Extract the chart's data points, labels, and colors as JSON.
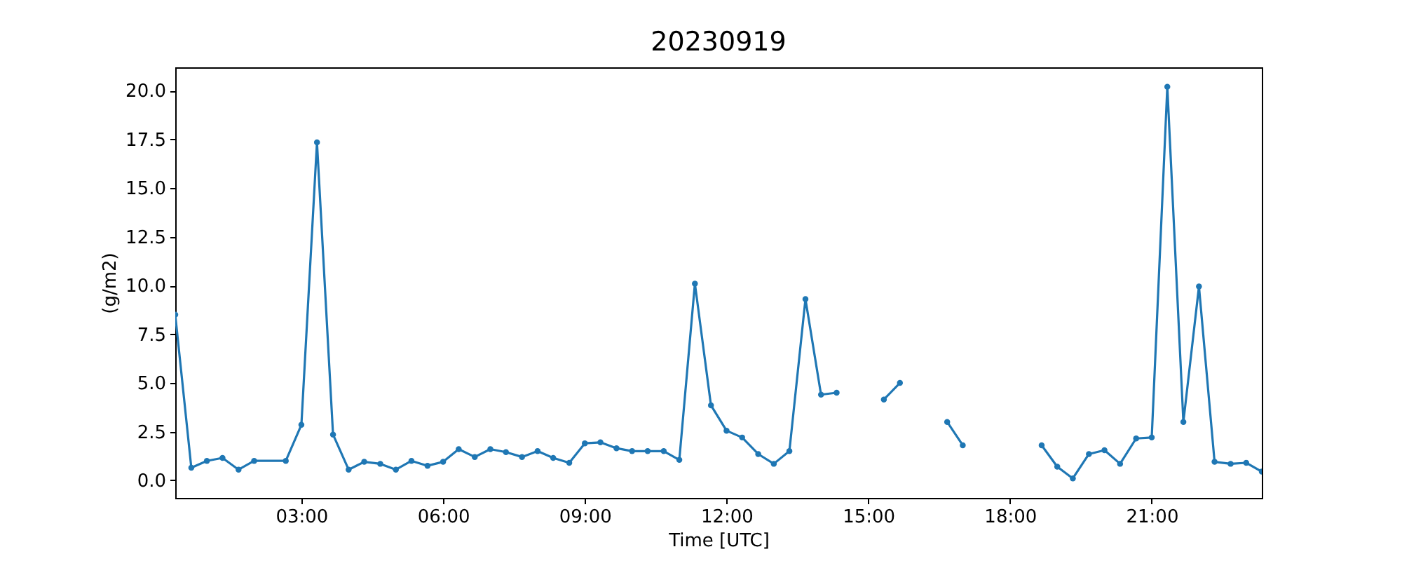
{
  "chart_data": {
    "type": "line",
    "title": "20230919",
    "xlabel": "Time [UTC]",
    "ylabel": "(g/m2)",
    "x": [
      0.33,
      0.67,
      1.0,
      1.33,
      1.67,
      2.0,
      2.67,
      3.0,
      3.33,
      3.67,
      4.0,
      4.33,
      4.67,
      5.0,
      5.33,
      5.67,
      6.0,
      6.33,
      6.67,
      7.0,
      7.33,
      7.67,
      8.0,
      8.33,
      8.67,
      9.0,
      9.33,
      9.67,
      10.0,
      10.33,
      10.67,
      11.0,
      11.33,
      11.67,
      12.0,
      12.33,
      12.67,
      13.0,
      13.33,
      13.67,
      14.0,
      14.33,
      14.67,
      15.0,
      15.33,
      15.67,
      16.0,
      16.33,
      16.67,
      17.0,
      17.33,
      17.67,
      18.0,
      18.33,
      18.67,
      19.0,
      19.33,
      19.67,
      20.0,
      20.33,
      20.67,
      21.0,
      21.33,
      21.67,
      22.0,
      22.33,
      22.67,
      23.0,
      23.33
    ],
    "series": [
      {
        "color": "#1f77b4",
        "values": [
          8.5,
          0.65,
          1.0,
          1.15,
          0.55,
          1.0,
          1.0,
          2.85,
          17.35,
          2.35,
          0.55,
          0.95,
          0.85,
          0.55,
          1.0,
          0.75,
          0.95,
          1.6,
          1.2,
          1.6,
          1.45,
          1.2,
          1.5,
          1.15,
          0.9,
          1.9,
          1.95,
          1.65,
          1.5,
          1.5,
          1.5,
          1.05,
          10.1,
          3.85,
          2.55,
          2.2,
          1.35,
          0.85,
          1.5,
          9.3,
          4.4,
          4.5,
          null,
          null,
          4.15,
          5.0,
          null,
          null,
          3.0,
          1.8,
          null,
          null,
          null,
          null,
          1.8,
          0.7,
          0.1,
          1.35,
          1.55,
          0.85,
          2.15,
          2.2,
          20.2,
          3.0,
          9.95,
          0.95,
          0.85,
          0.9,
          0.45
        ]
      }
    ],
    "xlim": [
      0.33,
      23.33
    ],
    "xticks": [
      {
        "value": 3,
        "label": "03:00"
      },
      {
        "value": 6,
        "label": "06:00"
      },
      {
        "value": 9,
        "label": "09:00"
      },
      {
        "value": 12,
        "label": "12:00"
      },
      {
        "value": 15,
        "label": "15:00"
      },
      {
        "value": 18,
        "label": "18:00"
      },
      {
        "value": 21,
        "label": "21:00"
      }
    ],
    "ylim": [
      -0.9,
      21.2
    ],
    "yticks": [
      {
        "value": 0,
        "label": "0.0"
      },
      {
        "value": 2.5,
        "label": "2.5"
      },
      {
        "value": 5,
        "label": "5.0"
      },
      {
        "value": 7.5,
        "label": "7.5"
      },
      {
        "value": 10,
        "label": "10.0"
      },
      {
        "value": 12.5,
        "label": "12.5"
      },
      {
        "value": 15,
        "label": "15.0"
      },
      {
        "value": 17.5,
        "label": "17.5"
      },
      {
        "value": 20,
        "label": "20.0"
      }
    ],
    "marker": "circle",
    "grid": false
  }
}
